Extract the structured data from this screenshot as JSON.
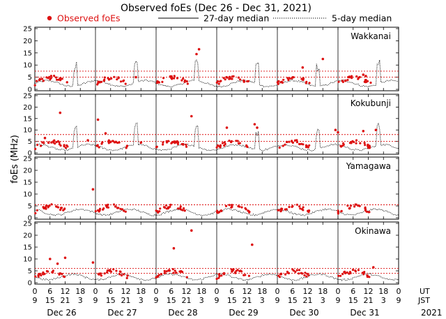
{
  "chart_data": {
    "type": "scatter",
    "title": "Observed foEs (Dec 26 - Dec 31, 2021)",
    "legend": {
      "observed": "Observed foEs",
      "median27": "27-day median",
      "median5": "5-day median",
      "observed_color": "#dd1111",
      "placement": "top"
    },
    "ylabel": "foEs (MHz)",
    "ylim": [
      0,
      25
    ],
    "yticks": [
      0,
      5,
      10,
      15,
      20,
      25
    ],
    "xlim_hours": [
      0,
      144
    ],
    "x_ticks_hours": [
      0,
      6,
      12,
      18,
      24,
      30,
      36,
      42,
      48,
      54,
      60,
      66,
      72,
      78,
      84,
      90,
      96,
      102,
      108,
      114,
      120,
      126,
      132,
      138,
      144
    ],
    "x_tick_labels_ut": [
      "0",
      "6",
      "12",
      "18",
      "0",
      "6",
      "12",
      "18",
      "0",
      "6",
      "12",
      "18",
      "0",
      "6",
      "12",
      "18",
      "0",
      "6",
      "12",
      "18",
      "0",
      "6",
      "12",
      "18",
      "0"
    ],
    "x_tick_labels_jst": [
      "9",
      "15",
      "21",
      "3",
      "9",
      "15",
      "21",
      "3",
      "9",
      "15",
      "21",
      "3",
      "9",
      "15",
      "21",
      "3",
      "9",
      "15",
      "21",
      "3",
      "9",
      "15",
      "21",
      "3",
      "9"
    ],
    "ut_label": "UT",
    "jst_label": "JST",
    "days": [
      "Dec 26",
      "Dec 27",
      "Dec 28",
      "Dec 29",
      "Dec 30",
      "Dec 31"
    ],
    "year": "2021",
    "stations": [
      {
        "name": "Wakkanai",
        "median27_upper": 7.5,
        "median27_lower": 5.0,
        "outliers": [
          [
            10,
            4.5
          ],
          [
            40,
            5.0
          ],
          [
            64,
            14.5
          ],
          [
            65,
            16.5
          ],
          [
            106,
            9.0
          ],
          [
            114,
            12.5
          ],
          [
            130,
            6.0
          ],
          [
            131,
            5.5
          ]
        ]
      },
      {
        "name": "Kokubunji",
        "median27_upper": 8.0,
        "median27_lower": 5.0,
        "outliers": [
          [
            4,
            6.5
          ],
          [
            10,
            17.5
          ],
          [
            21,
            5.5
          ],
          [
            25,
            14.5
          ],
          [
            28,
            8.5
          ],
          [
            42,
            4.5
          ],
          [
            62,
            16.0
          ],
          [
            76,
            11.0
          ],
          [
            87,
            12.5
          ],
          [
            88,
            11.0
          ],
          [
            119,
            10.0
          ],
          [
            120,
            9.0
          ],
          [
            130,
            9.5
          ],
          [
            135,
            10.0
          ]
        ]
      },
      {
        "name": "Yamagawa",
        "median27_upper": 5.5,
        "median27_lower": 5.5,
        "outliers": [
          [
            23,
            12.0
          ]
        ]
      },
      {
        "name": "Okinawa",
        "median27_upper": 6.0,
        "median27_lower": 4.0,
        "outliers": [
          [
            6,
            10.0
          ],
          [
            9,
            8.0
          ],
          [
            12,
            10.5
          ],
          [
            23,
            8.5
          ],
          [
            55,
            14.5
          ],
          [
            62,
            22.0
          ],
          [
            86,
            16.0
          ],
          [
            134,
            6.5
          ]
        ]
      }
    ]
  }
}
